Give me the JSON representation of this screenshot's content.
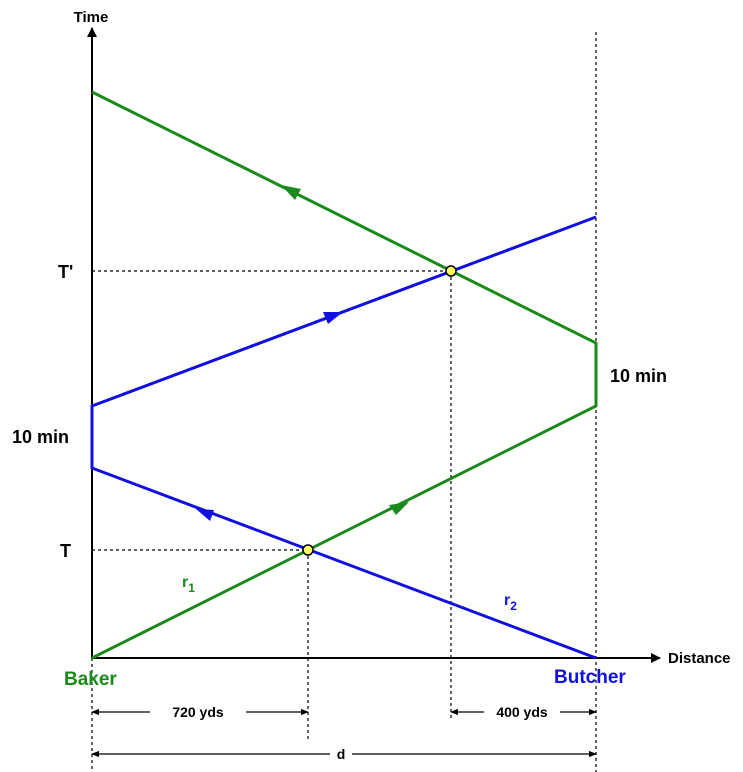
{
  "axes": {
    "y_label": "Time",
    "x_label": "Distance"
  },
  "time_marks": {
    "first_meeting": "T",
    "second_meeting": "T'"
  },
  "pauses": {
    "butcher_side": "10 min",
    "baker_side": "10 min"
  },
  "endpoints": {
    "left": "Baker",
    "right": "Butcher"
  },
  "rates": {
    "green": {
      "base": "r",
      "sub": "1"
    },
    "blue": {
      "base": "r",
      "sub": "2"
    }
  },
  "dimensions": {
    "first_meeting_from_baker": "720 yds",
    "second_meeting_from_butcher": "400 yds",
    "total_distance": "d"
  },
  "colors": {
    "green": "#1a8a1a",
    "blue": "#1010e0",
    "meeting_point": "#ffff66",
    "axis": "#000000"
  }
}
